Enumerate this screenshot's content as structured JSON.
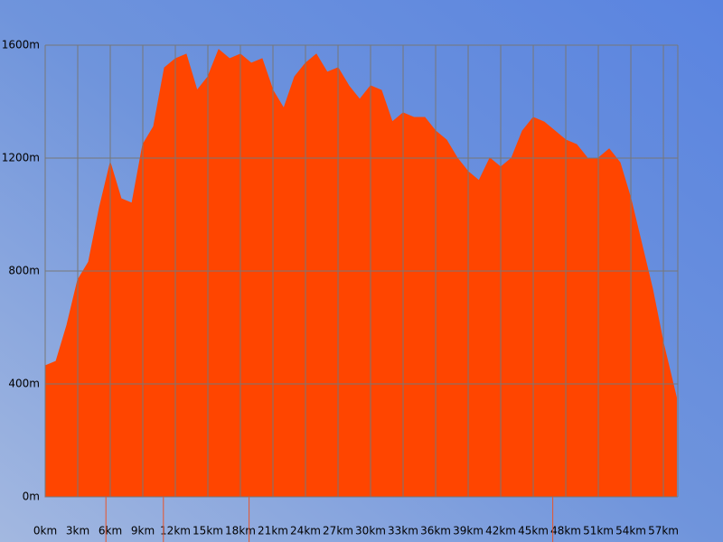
{
  "chart_data": {
    "type": "area",
    "x": [
      0,
      1,
      2,
      3,
      4,
      5,
      6,
      7,
      8,
      9,
      10,
      11,
      12,
      13,
      14,
      15,
      16,
      17,
      18,
      19,
      20,
      21,
      22,
      23,
      24,
      25,
      26,
      27,
      28,
      29,
      30,
      31,
      32,
      33,
      34,
      35,
      36,
      37,
      38,
      39,
      40,
      41,
      42,
      43,
      44,
      45,
      46,
      47,
      48,
      49,
      50,
      51,
      52,
      53,
      54,
      55,
      56,
      57,
      58,
      58.2
    ],
    "series": [
      {
        "color": "#ff4500",
        "values": [
          464,
          480,
          608,
          768,
          832,
          1024,
          1184,
          1056,
          1040,
          1248,
          1312,
          1520,
          1552,
          1568,
          1440,
          1488,
          1584,
          1552,
          1568,
          1536,
          1552,
          1440,
          1376,
          1488,
          1536,
          1568,
          1504,
          1520,
          1456,
          1408,
          1456,
          1440,
          1328,
          1360,
          1344,
          1344,
          1296,
          1264,
          1200,
          1152,
          1120,
          1200,
          1168,
          1200,
          1296,
          1344,
          1328,
          1296,
          1264,
          1248,
          1200,
          1200,
          1232,
          1184,
          1056,
          896,
          736,
          544,
          384,
          352
        ]
      }
    ],
    "markers": [
      5.6,
      10.9,
      18.8,
      46.8
    ],
    "marker_color": "#e8542a",
    "xlim": [
      0,
      58.33
    ],
    "ylim": [
      0,
      1600
    ],
    "xticks": [
      {
        "value": 0,
        "label": "0km"
      },
      {
        "value": 3,
        "label": "3km"
      },
      {
        "value": 6,
        "label": "6km"
      },
      {
        "value": 9,
        "label": "9km"
      },
      {
        "value": 12,
        "label": "12km"
      },
      {
        "value": 15,
        "label": "15km"
      },
      {
        "value": 18,
        "label": "18km"
      },
      {
        "value": 21,
        "label": "21km"
      },
      {
        "value": 24,
        "label": "24km"
      },
      {
        "value": 27,
        "label": "27km"
      },
      {
        "value": 30,
        "label": "30km"
      },
      {
        "value": 33,
        "label": "33km"
      },
      {
        "value": 36,
        "label": "36km"
      },
      {
        "value": 39,
        "label": "39km"
      },
      {
        "value": 42,
        "label": "42km"
      },
      {
        "value": 45,
        "label": "45km"
      },
      {
        "value": 48,
        "label": "48km"
      },
      {
        "value": 51,
        "label": "51km"
      },
      {
        "value": 54,
        "label": "54km"
      },
      {
        "value": 57,
        "label": "57km"
      }
    ],
    "yticks": [
      {
        "value": 0,
        "label": "0m"
      },
      {
        "value": 400,
        "label": "400m"
      },
      {
        "value": 800,
        "label": "800m"
      },
      {
        "value": 1200,
        "label": "1200m"
      },
      {
        "value": 1600,
        "label": "1600m"
      }
    ],
    "grid": true
  }
}
